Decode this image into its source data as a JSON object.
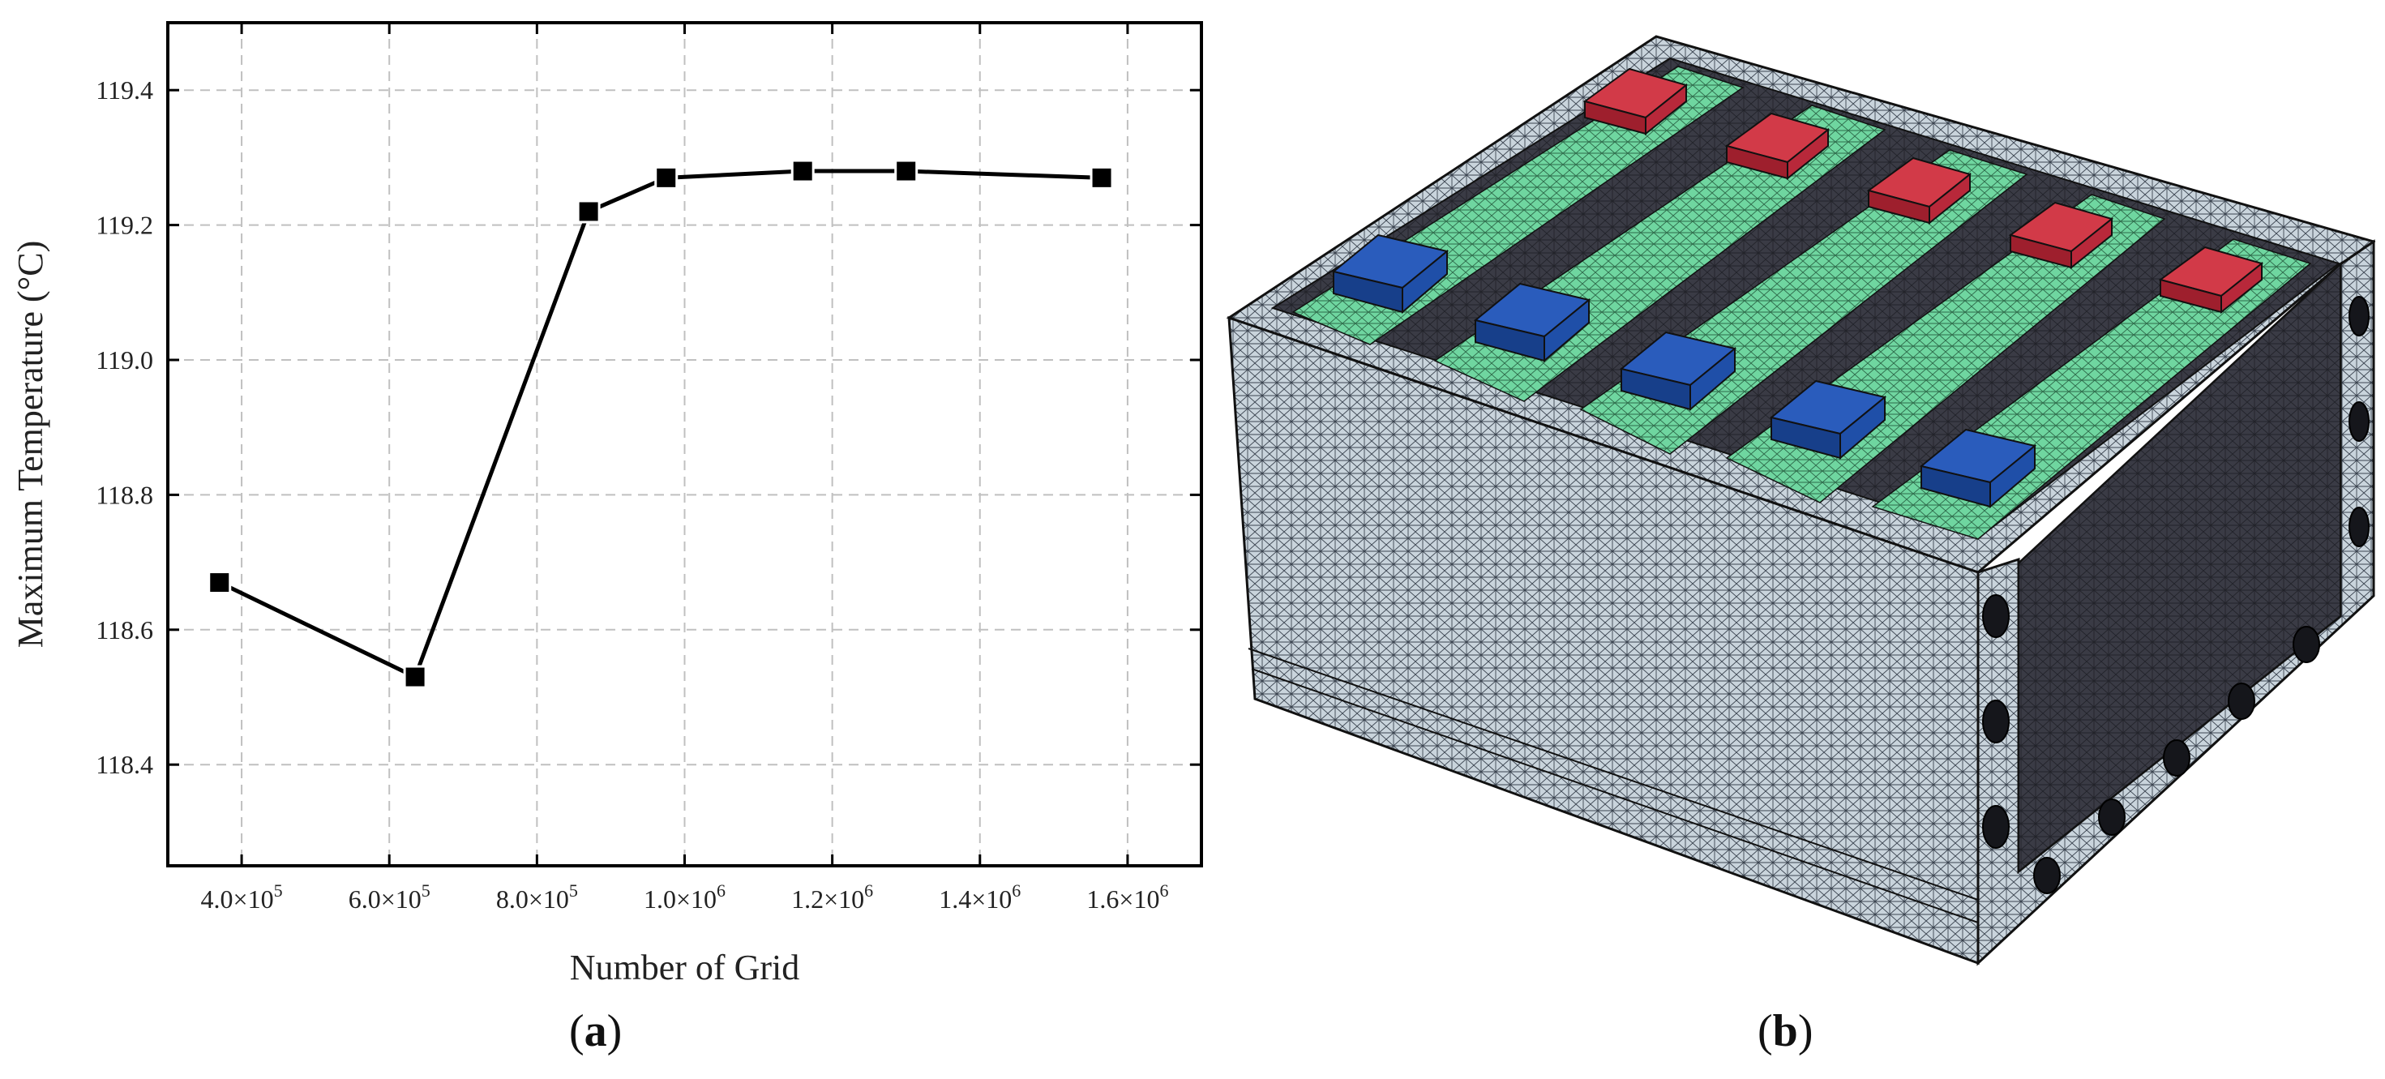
{
  "panels": {
    "a": {
      "open": "(",
      "letter": "a",
      "close": ")"
    },
    "b": {
      "open": "(",
      "letter": "b",
      "close": ")"
    }
  },
  "chart_data": {
    "type": "line",
    "xlabel": "Number of Grid",
    "ylabel": "Maximum Temperature (°C)",
    "x": [
      370000,
      635000,
      870000,
      975000,
      1160000,
      1300000,
      1565000
    ],
    "values": [
      118.67,
      118.53,
      119.22,
      119.27,
      119.28,
      119.28,
      119.27
    ],
    "xlim": [
      300000,
      1700000
    ],
    "ylim": [
      118.25,
      119.5
    ],
    "xticks": [
      400000,
      600000,
      800000,
      1000000,
      1200000,
      1400000,
      1600000
    ],
    "xtick_labels": [
      {
        "m": "4.0×10",
        "e": "5"
      },
      {
        "m": "6.0×10",
        "e": "5"
      },
      {
        "m": "8.0×10",
        "e": "5"
      },
      {
        "m": "1.0×10",
        "e": "6"
      },
      {
        "m": "1.2×10",
        "e": "6"
      },
      {
        "m": "1.4×10",
        "e": "6"
      },
      {
        "m": "1.6×10",
        "e": "6"
      }
    ],
    "yticks": [
      118.4,
      118.6,
      118.8,
      119.0,
      119.2,
      119.4
    ],
    "ytick_labels": [
      "118.4",
      "118.6",
      "118.8",
      "119.0",
      "119.2",
      "119.4"
    ],
    "grid": true,
    "marker": "square",
    "line_color": "#000000",
    "grid_color": "#c0c0c0"
  },
  "mesh_colors": {
    "body": "#c9d4dc",
    "dark_panel": "#3a3b45",
    "green_strip": "#6fd6a0",
    "red_block": "#c0283a",
    "blue_block": "#1f4fa8",
    "mesh_line": "#2a2e35"
  }
}
